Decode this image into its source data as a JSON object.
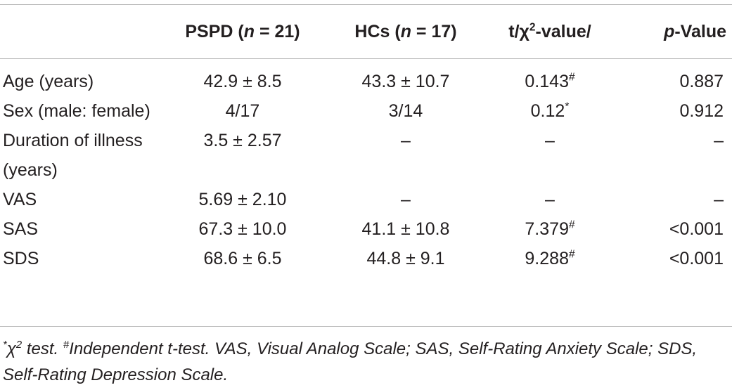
{
  "table": {
    "headers": [
      {
        "text": "",
        "italic_n": ""
      },
      {
        "prefix": "PSPD (",
        "italic": "n",
        "suffix": " = 21)"
      },
      {
        "prefix": "HCs (",
        "italic": "n",
        "suffix": " = 17)"
      },
      {
        "prefix": "t/χ",
        "sup": "2",
        "suffix": "-value/"
      },
      {
        "italic": "p",
        "suffix": "-Value"
      }
    ],
    "rows": [
      {
        "label": "Age (years)",
        "pspd": "42.9 ± 8.5",
        "hcs": "43.3 ± 10.7",
        "stat": "0.143",
        "stat_mark": "#",
        "p": "0.887"
      },
      {
        "label": "Sex (male: female)",
        "pspd": "4/17",
        "hcs": "3/14",
        "stat": "0.12",
        "stat_mark": "*",
        "p": "0.912"
      },
      {
        "label": "Duration of illness (years)",
        "pspd": "3.5 ± 2.57",
        "hcs": "–",
        "stat": "–",
        "stat_mark": "",
        "p": "–"
      },
      {
        "label": "VAS",
        "pspd": "5.69 ± 2.10",
        "hcs": "–",
        "stat": "–",
        "stat_mark": "",
        "p": "–"
      },
      {
        "label": "SAS",
        "pspd": "67.3 ± 10.0",
        "hcs": "41.1 ± 10.8",
        "stat": "7.379",
        "stat_mark": "#",
        "p": "<0.001"
      },
      {
        "label": "SDS",
        "pspd": "68.6 ± 6.5",
        "hcs": "44.8 ± 9.1",
        "stat": "9.288",
        "stat_mark": "#",
        "p": "<0.001"
      }
    ]
  },
  "footnote": {
    "mark1": "*",
    "chi": "χ",
    "chi_sup": "2",
    "part1": " test. ",
    "mark2": "#",
    "part2": "Independent t-test. VAS, Visual Analog Scale; SAS, Self-Rating Anxiety Scale; SDS, Self-Rating Depression Scale."
  }
}
